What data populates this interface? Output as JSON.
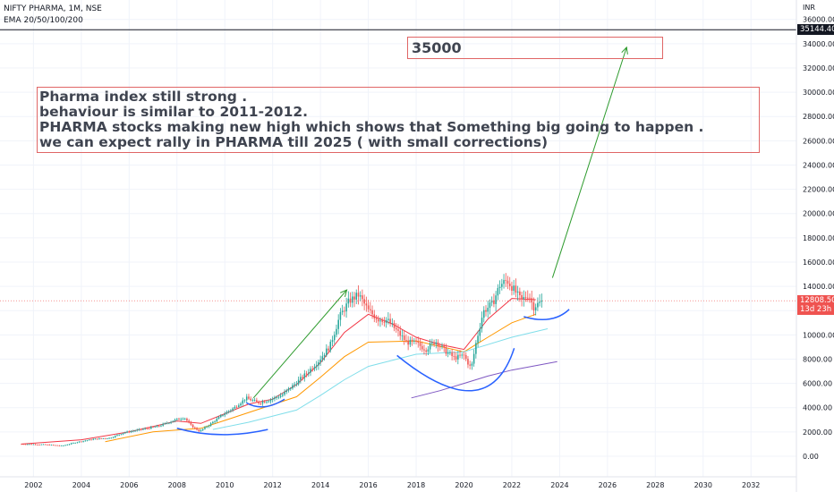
{
  "legend": {
    "symbol_line": "NIFTY PHARMA, 1M, NSE",
    "indicator_line": "EMA 20/50/100/200"
  },
  "currency": "INR",
  "annotations": {
    "note_lines": [
      "Pharma index still strong .",
      "behaviour is similar to 2011-2012.",
      "PHARMA stocks making new high which shows that Something big going to happen .",
      "we can expect rally in PHARMA  till 2025 ( with small corrections)"
    ],
    "target_label": "35000"
  },
  "price_tags": {
    "horizontal_line_level": "35144.40",
    "last_price": "12808.50",
    "countdown": "13d 23h"
  },
  "colors": {
    "up": "#26a69a",
    "down": "#ef5350",
    "ema20": "#f23645",
    "ema50": "#ff9800",
    "ema100": "#80deea",
    "ema200": "#7e57c2",
    "arrow": "#2e9b2e",
    "curve": "#2962ff",
    "box": "#e06666"
  },
  "chart_data": {
    "type": "candlestick",
    "title": "NIFTY PHARMA, 1M, NSE",
    "x_ticks": [
      "2002",
      "2004",
      "2006",
      "2008",
      "2010",
      "2012",
      "2014",
      "2016",
      "2018",
      "2020",
      "2022",
      "2024",
      "2026",
      "2028",
      "2030",
      "2032"
    ],
    "y_ticks": [
      "0.00",
      "2000.00",
      "4000.00",
      "6000.00",
      "8000.00",
      "10000.00",
      "12000.00",
      "14000.00",
      "16000.00",
      "18000.00",
      "20000.00",
      "22000.00",
      "24000.00",
      "26000.00",
      "28000.00",
      "30000.00",
      "32000.00",
      "34000.00",
      "36000.00"
    ],
    "xlim": [
      2000.6,
      2033.9
    ],
    "ylim": [
      -1700,
      37600
    ],
    "close_series": {
      "name": "NIFTY PHARMA",
      "points": [
        [
          2001.5,
          1000
        ],
        [
          2002.5,
          950
        ],
        [
          2003.2,
          850
        ],
        [
          2003.8,
          1150
        ],
        [
          2004.5,
          1400
        ],
        [
          2005.2,
          1500
        ],
        [
          2005.8,
          1950
        ],
        [
          2006.5,
          2200
        ],
        [
          2007.2,
          2450
        ],
        [
          2007.8,
          2900
        ],
        [
          2008.3,
          3200
        ],
        [
          2008.6,
          2500
        ],
        [
          2008.95,
          2050
        ],
        [
          2009.4,
          2650
        ],
        [
          2009.9,
          3400
        ],
        [
          2010.4,
          4000
        ],
        [
          2010.9,
          4800
        ],
        [
          2011.4,
          4400
        ],
        [
          2011.9,
          4650
        ],
        [
          2012.4,
          5050
        ],
        [
          2012.9,
          5900
        ],
        [
          2013.4,
          6800
        ],
        [
          2013.9,
          7800
        ],
        [
          2014.4,
          9100
        ],
        [
          2014.8,
          11500
        ],
        [
          2015.2,
          12800
        ],
        [
          2015.6,
          13300
        ],
        [
          2016.0,
          12000
        ],
        [
          2016.4,
          11300
        ],
        [
          2016.8,
          11200
        ],
        [
          2017.2,
          10300
        ],
        [
          2017.6,
          9400
        ],
        [
          2018.0,
          9300
        ],
        [
          2018.4,
          8800
        ],
        [
          2018.8,
          9500
        ],
        [
          2019.2,
          8700
        ],
        [
          2019.6,
          8100
        ],
        [
          2020.0,
          8300
        ],
        [
          2020.3,
          7200
        ],
        [
          2020.5,
          9300
        ],
        [
          2020.8,
          11900
        ],
        [
          2021.2,
          12600
        ],
        [
          2021.5,
          14100
        ],
        [
          2021.8,
          14500
        ],
        [
          2022.1,
          13700
        ],
        [
          2022.4,
          12800
        ],
        [
          2022.7,
          13400
        ],
        [
          2022.9,
          12300
        ],
        [
          2023.3,
          12808.5
        ]
      ]
    },
    "ema_series": [
      {
        "name": "EMA 20",
        "points": [
          [
            2001.5,
            1000
          ],
          [
            2004,
            1350
          ],
          [
            2006,
            2000
          ],
          [
            2008,
            2900
          ],
          [
            2009,
            2700
          ],
          [
            2010,
            3500
          ],
          [
            2011,
            4300
          ],
          [
            2012,
            4700
          ],
          [
            2013,
            5900
          ],
          [
            2014,
            7700
          ],
          [
            2015,
            10200
          ],
          [
            2016,
            11700
          ],
          [
            2017,
            10900
          ],
          [
            2018,
            9800
          ],
          [
            2019,
            9200
          ],
          [
            2020,
            8800
          ],
          [
            2021,
            11300
          ],
          [
            2022,
            13000
          ],
          [
            2023,
            12900
          ]
        ]
      },
      {
        "name": "EMA 50",
        "points": [
          [
            2005,
            1200
          ],
          [
            2007,
            2000
          ],
          [
            2009,
            2300
          ],
          [
            2011,
            3600
          ],
          [
            2013,
            4900
          ],
          [
            2014,
            6500
          ],
          [
            2015,
            8200
          ],
          [
            2016,
            9400
          ],
          [
            2018,
            9500
          ],
          [
            2020,
            8600
          ],
          [
            2021,
            9800
          ],
          [
            2022,
            11000
          ],
          [
            2023,
            11700
          ]
        ]
      },
      {
        "name": "EMA 100",
        "points": [
          [
            2009.5,
            2200
          ],
          [
            2011,
            2800
          ],
          [
            2013,
            3800
          ],
          [
            2014,
            5000
          ],
          [
            2015,
            6300
          ],
          [
            2016,
            7400
          ],
          [
            2018,
            8400
          ],
          [
            2020,
            8600
          ],
          [
            2022,
            9800
          ],
          [
            2023.5,
            10500
          ]
        ]
      },
      {
        "name": "EMA 200",
        "points": [
          [
            2017.8,
            4800
          ],
          [
            2019,
            5400
          ],
          [
            2020,
            6000
          ],
          [
            2021,
            6600
          ],
          [
            2022,
            7100
          ],
          [
            2023.9,
            7800
          ]
        ]
      }
    ],
    "drawings": {
      "horizontal_line": 35144.4,
      "arrows": [
        {
          "from": [
            2011.2,
            4800
          ],
          "to": [
            2015.1,
            13700
          ]
        },
        {
          "from": [
            2023.7,
            14700
          ],
          "to": [
            2026.8,
            33700
          ]
        }
      ],
      "curves": [
        {
          "from": [
            2008.0,
            2300
          ],
          "ctrl": [
            2009.8,
            1300
          ],
          "to": [
            2011.8,
            2200
          ]
        },
        {
          "from": [
            2010.9,
            4400
          ],
          "ctrl": [
            2011.6,
            3600
          ],
          "to": [
            2012.5,
            4700
          ]
        },
        {
          "from": [
            2017.2,
            8300
          ],
          "ctrl": [
            2021.0,
            2200
          ],
          "to": [
            2022.1,
            8900
          ]
        },
        {
          "from": [
            2022.5,
            11500
          ],
          "ctrl": [
            2023.7,
            10800
          ],
          "to": [
            2024.4,
            12100
          ]
        }
      ]
    }
  }
}
